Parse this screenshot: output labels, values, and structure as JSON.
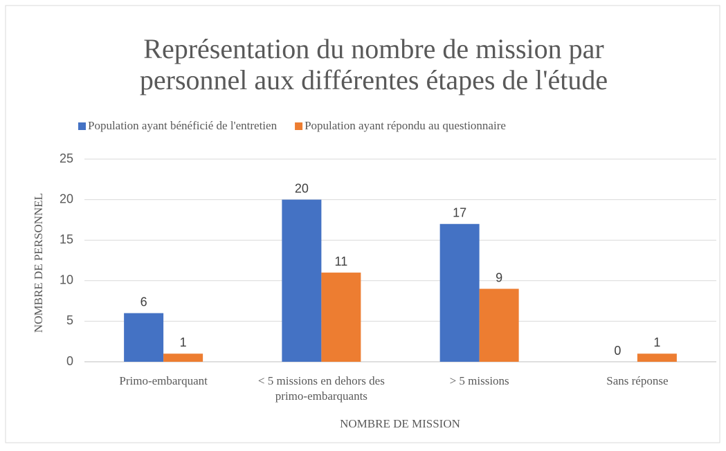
{
  "chart_data": {
    "type": "bar",
    "title": [
      "Représentation du nombre de mission par",
      "personnel aux différentes étapes de l'étude"
    ],
    "categories": [
      "Primo-embarquant",
      "< 5 missions en dehors des primo-embarquants",
      "> 5 missions",
      "Sans réponse"
    ],
    "series": [
      {
        "name": "Population ayant bénéficié de l'entretien",
        "color": "#4472c4",
        "values": [
          6,
          20,
          17,
          0
        ]
      },
      {
        "name": "Population ayant répondu au questionnaire",
        "color": "#ed7d31",
        "values": [
          1,
          11,
          9,
          1
        ]
      }
    ],
    "x_label": "NOMBRE DE MISSION",
    "y_label": "NOMBRE DE PERSONNEL",
    "ylim": [
      0,
      25
    ],
    "yticks": [
      0,
      5,
      10,
      15,
      20,
      25
    ],
    "grid": true,
    "legend": "top"
  }
}
